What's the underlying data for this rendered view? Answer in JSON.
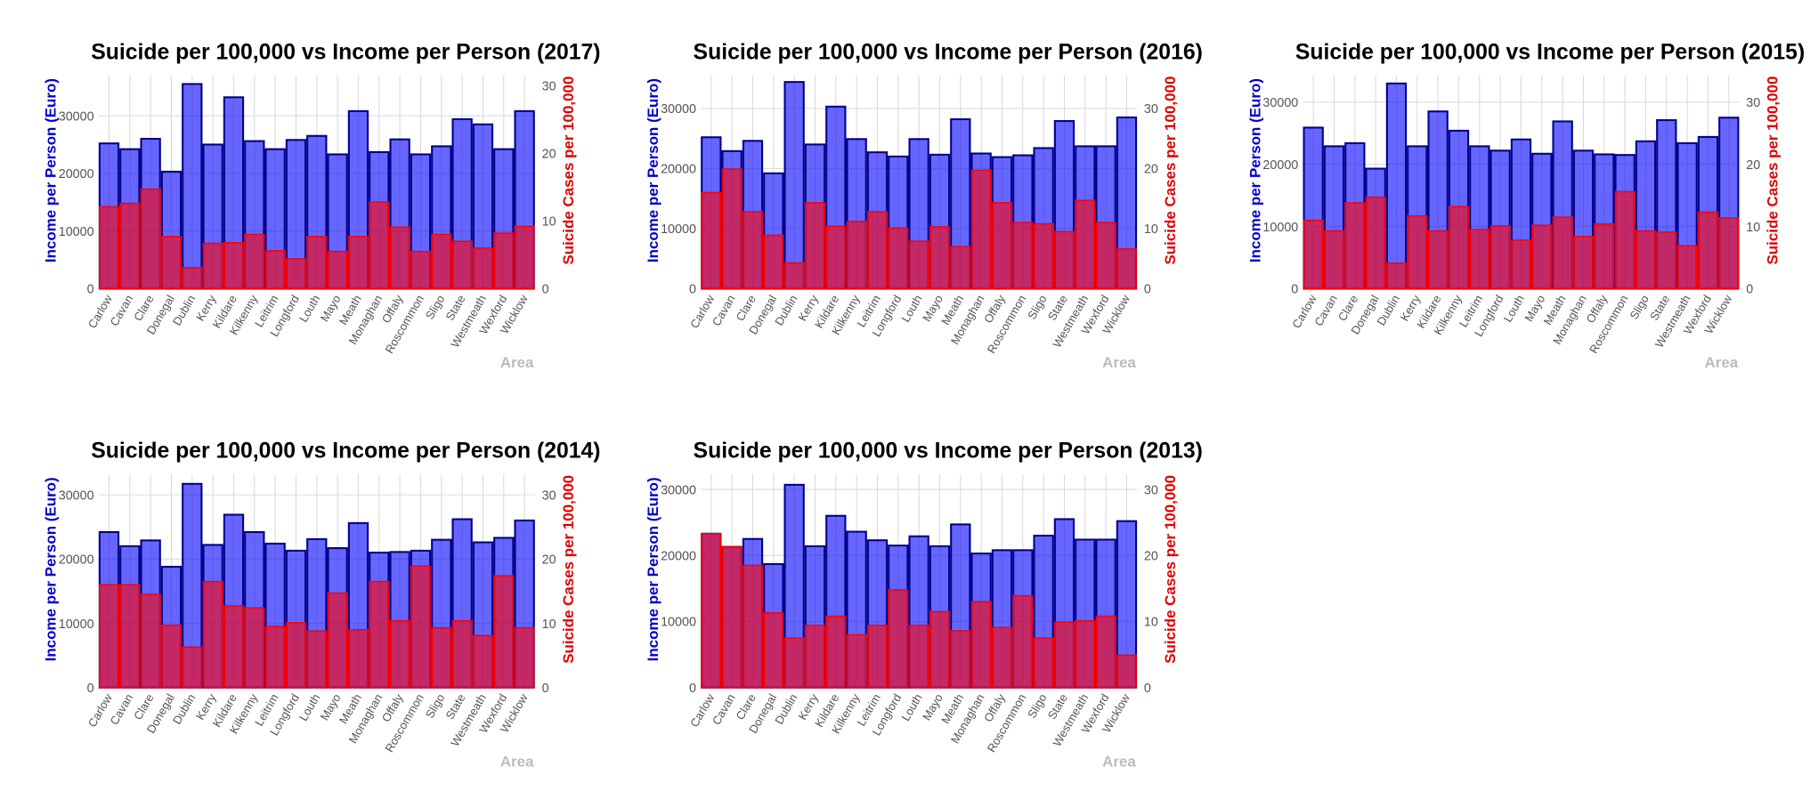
{
  "chart_data": [
    {
      "type": "bar",
      "title": "Suicide per 100,000 vs Income per Person (2017)",
      "ylabel": "Income per Person (Euro)",
      "y2label": "Suicide Cases per 100,000",
      "xlabel": "Area",
      "categories": [
        "Carlow",
        "Cavan",
        "Clare",
        "Donegal",
        "Dublin",
        "Kerry",
        "Kildare",
        "Kilkenny",
        "Leitrim",
        "Longford",
        "Louth",
        "Mayo",
        "Meath",
        "Monaghan",
        "Offaly",
        "Roscommon",
        "Sligo",
        "State",
        "Westmeath",
        "Wexford",
        "Wicklow"
      ],
      "series": [
        {
          "color": "#0000FF",
          "values": [
            25200,
            24200,
            26000,
            20300,
            35500,
            25000,
            33200,
            25600,
            24200,
            25800,
            26500,
            23300,
            30800,
            23700,
            25900,
            23300,
            24700,
            29400,
            28500,
            24200,
            30800
          ]
        },
        {
          "color": "#FF0000",
          "axis": "y2",
          "values": [
            12.1,
            12.6,
            14.7,
            7.7,
            3.1,
            6.7,
            6.8,
            8.0,
            5.6,
            4.4,
            7.7,
            5.5,
            7.7,
            12.8,
            9.1,
            5.5,
            8.0,
            7.0,
            6.0,
            8.2,
            9.2
          ]
        }
      ],
      "ylim": [
        0,
        37000
      ],
      "yticks": [
        0,
        10000,
        20000,
        30000
      ],
      "y2lim": [
        0,
        31.5
      ],
      "y2ticks": [
        0,
        10,
        20,
        30
      ],
      "grid": true
    },
    {
      "type": "bar",
      "title": "Suicide per 100,000 vs Income per Person (2016)",
      "ylabel": "Income per Person (Euro)",
      "y2label": "Suicide Cases per 100,000",
      "xlabel": "Area",
      "categories": [
        "Carlow",
        "Cavan",
        "Clare",
        "Donegal",
        "Dublin",
        "Kerry",
        "Kildare",
        "Kilkenny",
        "Leitrim",
        "Longford",
        "Louth",
        "Mayo",
        "Meath",
        "Monaghan",
        "Offaly",
        "Roscommon",
        "Sligo",
        "State",
        "Westmeath",
        "Wexford",
        "Wicklow"
      ],
      "series": [
        {
          "color": "#0000FF",
          "values": [
            25200,
            22900,
            24600,
            19200,
            34400,
            24000,
            30300,
            24900,
            22700,
            22000,
            24900,
            22300,
            28200,
            22500,
            21900,
            22200,
            23400,
            27900,
            23700,
            23700,
            28500
          ]
        },
        {
          "color": "#FF0000",
          "axis": "y2",
          "values": [
            16.0,
            19.9,
            12.8,
            8.9,
            4.3,
            14.3,
            10.4,
            11.2,
            12.8,
            10.1,
            7.9,
            10.3,
            7.0,
            19.7,
            14.3,
            11.0,
            10.8,
            9.5,
            14.7,
            11.0,
            6.6
          ]
        }
      ],
      "ylim": [
        0,
        35500
      ],
      "yticks": [
        0,
        10000,
        20000,
        30000
      ],
      "y2lim": [
        0,
        35.5
      ],
      "y2ticks": [
        0,
        10,
        20,
        30
      ],
      "grid": true
    },
    {
      "type": "bar",
      "title": "Suicide per 100,000 vs Income per Person (2015)",
      "ylabel": "Income per Person (Euro)",
      "y2label": "Suicide Cases per 100,000",
      "xlabel": "Area",
      "categories": [
        "Carlow",
        "Cavan",
        "Clare",
        "Donegal",
        "Dublin",
        "Kerry",
        "Kildare",
        "Kilkenny",
        "Leitrim",
        "Longford",
        "Louth",
        "Mayo",
        "Meath",
        "Monaghan",
        "Offaly",
        "Roscommon",
        "Sligo",
        "State",
        "Westmeath",
        "Wexford",
        "Wicklow"
      ],
      "series": [
        {
          "color": "#0000FF",
          "values": [
            25900,
            22900,
            23400,
            19300,
            33000,
            22900,
            28500,
            25400,
            22900,
            22200,
            24000,
            21700,
            26900,
            22200,
            21600,
            21500,
            23700,
            27100,
            23400,
            24400,
            27500
          ]
        },
        {
          "color": "#FF0000",
          "axis": "y2",
          "values": [
            11.0,
            9.3,
            13.8,
            14.7,
            4.1,
            11.7,
            9.3,
            13.2,
            9.5,
            10.1,
            7.8,
            10.2,
            11.5,
            8.4,
            10.4,
            15.6,
            9.3,
            9.1,
            6.9,
            12.3,
            11.4
          ]
        }
      ],
      "ylim": [
        0,
        34300
      ],
      "yticks": [
        0,
        10000,
        20000,
        30000
      ],
      "y2lim": [
        0,
        34.3
      ],
      "y2ticks": [
        0,
        10,
        20,
        30
      ],
      "grid": true
    },
    {
      "type": "bar",
      "title": "Suicide per 100,000 vs Income per Person (2014)",
      "ylabel": "Income per Person (Euro)",
      "y2label": "Suicide Cases per 100,000",
      "xlabel": "Area",
      "categories": [
        "Carlow",
        "Cavan",
        "Clare",
        "Donegal",
        "Dublin",
        "Kerry",
        "Kildare",
        "Kilkenny",
        "Leitrim",
        "Longford",
        "Louth",
        "Mayo",
        "Meath",
        "Monaghan",
        "Offaly",
        "Roscommon",
        "Sligo",
        "State",
        "Westmeath",
        "Wexford",
        "Wicklow"
      ],
      "series": [
        {
          "color": "#0000FF",
          "values": [
            24200,
            22000,
            22900,
            18800,
            31700,
            22200,
            26900,
            24200,
            22400,
            21300,
            23100,
            21700,
            25600,
            21000,
            21100,
            21300,
            23000,
            26200,
            22600,
            23300,
            26000
          ]
        },
        {
          "color": "#FF0000",
          "axis": "y2",
          "values": [
            16.0,
            16.0,
            14.5,
            9.7,
            6.3,
            16.5,
            12.7,
            12.4,
            9.5,
            10.1,
            8.8,
            14.7,
            9.0,
            16.5,
            10.4,
            18.9,
            9.3,
            10.4,
            8.1,
            17.4,
            9.3
          ]
        }
      ],
      "ylim": [
        0,
        33200
      ],
      "yticks": [
        0,
        10000,
        20000,
        30000
      ],
      "y2lim": [
        0,
        33.2
      ],
      "y2ticks": [
        0,
        10,
        20,
        30
      ],
      "grid": true
    },
    {
      "type": "bar",
      "title": "Suicide per 100,000 vs Income per Person (2013)",
      "ylabel": "Income per Person (Euro)",
      "y2label": "Suicide Cases per 100,000",
      "xlabel": "Area",
      "categories": [
        "Carlow",
        "Cavan",
        "Clare",
        "Donegal",
        "Dublin",
        "Kerry",
        "Kildare",
        "Kilkenny",
        "Leitrim",
        "Longford",
        "Louth",
        "Mayo",
        "Meath",
        "Monaghan",
        "Offaly",
        "Roscommon",
        "Sligo",
        "State",
        "Westmeath",
        "Wexford",
        "Wicklow"
      ],
      "series": [
        {
          "color": "#0000FF",
          "values": [
            23300,
            21300,
            22500,
            18700,
            30700,
            21400,
            26000,
            23600,
            22300,
            21500,
            22900,
            21400,
            24700,
            20300,
            20800,
            20800,
            23000,
            25500,
            22400,
            22400,
            25200
          ]
        },
        {
          "color": "#FF0000",
          "axis": "y2",
          "values": [
            23.3,
            21.3,
            18.5,
            11.3,
            7.5,
            9.4,
            10.8,
            8.0,
            9.4,
            14.8,
            9.4,
            11.5,
            8.6,
            13.0,
            9.1,
            13.9,
            7.5,
            9.9,
            10.1,
            10.8,
            4.9
          ]
        }
      ],
      "ylim": [
        0,
        32300
      ],
      "yticks": [
        0,
        10000,
        20000,
        30000
      ],
      "y2lim": [
        0,
        32.3
      ],
      "y2ticks": [
        0,
        10,
        20,
        30
      ],
      "grid": true
    }
  ]
}
